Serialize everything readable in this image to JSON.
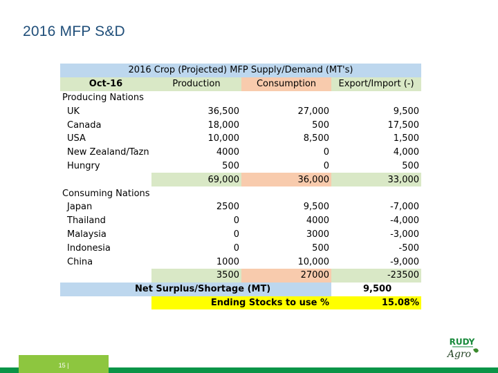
{
  "slide": {
    "title": "2016 MFP S&D",
    "page_number": "15 |"
  },
  "table": {
    "title": "2016 Crop (Projected) MFP Supply/Demand (MT's)",
    "date": "Oct-16",
    "headers": [
      "Production",
      "Consumption",
      "Export/Import (-)"
    ],
    "producing_label": "Producing Nations",
    "producing": [
      {
        "name": "UK",
        "production": "36,500",
        "consumption": "27,000",
        "export": "9,500"
      },
      {
        "name": "Canada",
        "production": "18,000",
        "consumption": "500",
        "export": "17,500"
      },
      {
        "name": "USA",
        "production": "10,000",
        "consumption": "8,500",
        "export": "1,500"
      },
      {
        "name": "New Zealand/Tazn",
        "production": "4000",
        "consumption": "0",
        "export": "4,000"
      },
      {
        "name": "Hungry",
        "production": "500",
        "consumption": "0",
        "export": "500"
      }
    ],
    "producing_total": {
      "production": "69,000",
      "consumption": "36,000",
      "export": "33,000"
    },
    "consuming_label": "Consuming Nations",
    "consuming": [
      {
        "name": "Japan",
        "production": "2500",
        "consumption": "9,500",
        "export": "-7,000"
      },
      {
        "name": "Thailand",
        "production": "0",
        "consumption": "4000",
        "export": "-4,000"
      },
      {
        "name": "Malaysia",
        "production": "0",
        "consumption": "3000",
        "export": "-3,000"
      },
      {
        "name": "Indonesia",
        "production": "0",
        "consumption": "500",
        "export": "-500"
      },
      {
        "name": "China",
        "production": "1000",
        "consumption": "10,000",
        "export": "-9,000"
      }
    ],
    "consuming_total": {
      "production": "3500",
      "consumption": "27000",
      "export": "-23500"
    },
    "net_label": "Net Surplus/Shortage (MT)",
    "net_value": "9,500",
    "ending_label": "Ending Stocks to use %",
    "ending_value": "15.08%"
  },
  "logo": {
    "brand": "RUDY",
    "sub": "Agro"
  },
  "colors": {
    "title": "#1f4e79",
    "header_blue": "#bdd7ee",
    "green": "#d9e8c6",
    "peach": "#f8cbad",
    "yellow": "#ffff00",
    "footer_dark": "#0a9447",
    "footer_light": "#8dc63f"
  }
}
